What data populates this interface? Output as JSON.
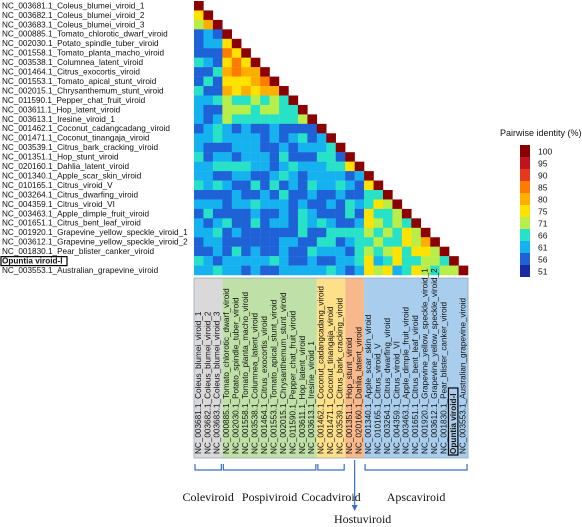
{
  "chart_data": {
    "type": "heatmap",
    "title": "",
    "legend": {
      "title": "Pairwise identity  (%)",
      "ticks": [
        100,
        95,
        90,
        85,
        80,
        75,
        71,
        66,
        61,
        56,
        51
      ],
      "colors": [
        "#8b0000",
        "#c1121f",
        "#e8381c",
        "#ff7a00",
        "#ffae00",
        "#ffe200",
        "#b8ee4a",
        "#28e2c8",
        "#16b2ef",
        "#1f62d8",
        "#1a2aa0"
      ],
      "placement": "right"
    },
    "labels": [
      "NC_003681.1_Coleus_blumei_viroid_1",
      "NC_003682.1_Coleus_blumei_viroid_2",
      "NC_003683.1_Coleus_blumei_viroid_3",
      "NC_000885.1_Tomato_chlorotic_dwarf_viroid",
      "NC_002030.1_Potato_spindle_tuber_viroid",
      "NC_001558.1_Tomato_planta_macho_viroid",
      "NC_003538.1_Columnea_latent_viroid",
      "NC_001464.1_Citrus_exocortis_viroid",
      "NC_001553.1_Tomato_apical_stunt_viroid",
      "NC_002015.1_Chrysanthemum_stunt_viroid",
      "NC_011590.1_Pepper_chat_fruit_viroid",
      "NC_003611.1_Hop_latent_viroid",
      "NC_003613.1_Iresine_viroid_1",
      "NC_001462.1_Coconut_cadangcadang_viroid",
      "NC_001471.1_Coconut_tinangaja_viroid",
      "NC_003539.1_Citrus_bark_cracking_viroid",
      "NC_001351.1_Hop_stunt_viroid",
      "NC_020160.1_Dahlia_latent_viroid",
      "NC_001340.1_Apple_scar_skin_viroid",
      "NC_010165.1_Citrus_viroid_V",
      "NC_003264.1_Citrus_dwarfing_viroid",
      "NC_004359.1_Citrus_viroid_VI",
      "NC_003463.1_Apple_dimple_fruit_viroid",
      "NC_001651.1_Citrus_bent_leaf_viroid",
      "NC_001920.1_Grapevine_yellow_speckle_viroid_1",
      "NC_003612.1_Grapevine_yellow_speckle_viroid_2",
      "NC_001830.1_Pear_blister_canker_viroid",
      "Opuntia viroid-I",
      "NC_003553.1_Australian_grapevine_viroid"
    ],
    "highlighted_label": "Opuntia viroid-I",
    "genera": [
      {
        "name": "Coleviroid",
        "start": 0,
        "end": 2,
        "color": "#d9d9d9"
      },
      {
        "name": "Pospiviroid",
        "start": 3,
        "end": 12,
        "color": "#bfe0a6"
      },
      {
        "name": "Cocadviroid",
        "start": 13,
        "end": 15,
        "color": "#ffe08a"
      },
      {
        "name": "Hostuviroid",
        "start": 16,
        "end": 17,
        "color": "#f7b98b"
      },
      {
        "name": "Apscaviroid",
        "start": 18,
        "end": 28,
        "color": "#a9cdec"
      }
    ],
    "identity_rules": {
      "diagonal": 100,
      "within_genus_pairs": {
        "Coleviroid": [
          81,
          77,
          73
        ],
        "Pospiviroid_block_a": 80,
        "Pospiviroid_block_b": 68,
        "Cocadviroid": 64,
        "Hostuviroid": 74,
        "Apscaviroid": 70,
        "Grapevine_yellow_speckle_pair": 80
      },
      "between_genus_mean": 60
    }
  }
}
